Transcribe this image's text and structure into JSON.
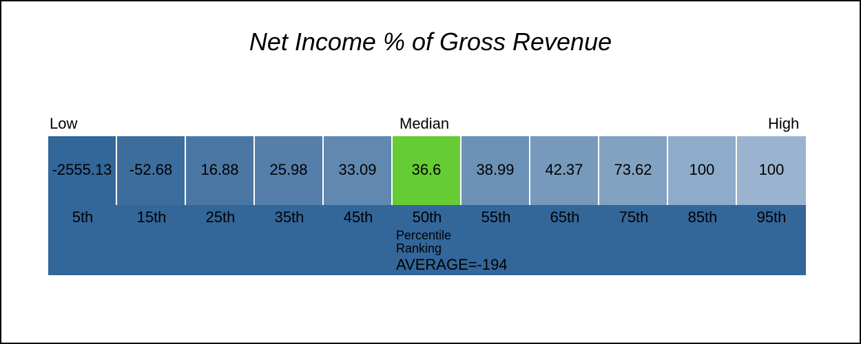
{
  "chart_data": {
    "type": "percentile-band",
    "title": "Net Income % of Gross Revenue",
    "markers": {
      "low": "Low",
      "median": "Median",
      "high": "High"
    },
    "categories": [
      "5th",
      "15th",
      "25th",
      "35th",
      "45th",
      "50th",
      "55th",
      "65th",
      "75th",
      "85th",
      "95th"
    ],
    "value_labels": [
      "-2555.13",
      "-52.68",
      "16.88",
      "25.98",
      "33.09",
      "36.6",
      "38.99",
      "42.37",
      "73.62",
      "100",
      "100"
    ],
    "values": [
      -2555.13,
      -52.68,
      16.88,
      25.98,
      33.09,
      36.6,
      38.99,
      42.37,
      73.62,
      100,
      100
    ],
    "highlight_index": 5,
    "colors": {
      "highlight": "#66CC33",
      "cells": [
        "#336699",
        "#3D6D9D",
        "#4A76A4",
        "#557EAA",
        "#6088B0",
        "#66CC33",
        "#6B91B6",
        "#7699BC",
        "#82A2C2",
        "#8EABC9",
        "#9AB4CF"
      ],
      "footer": "#336699"
    },
    "caption_line1": "Percentile",
    "caption_line2": "Ranking",
    "average_label": "AVERAGE=-194"
  }
}
